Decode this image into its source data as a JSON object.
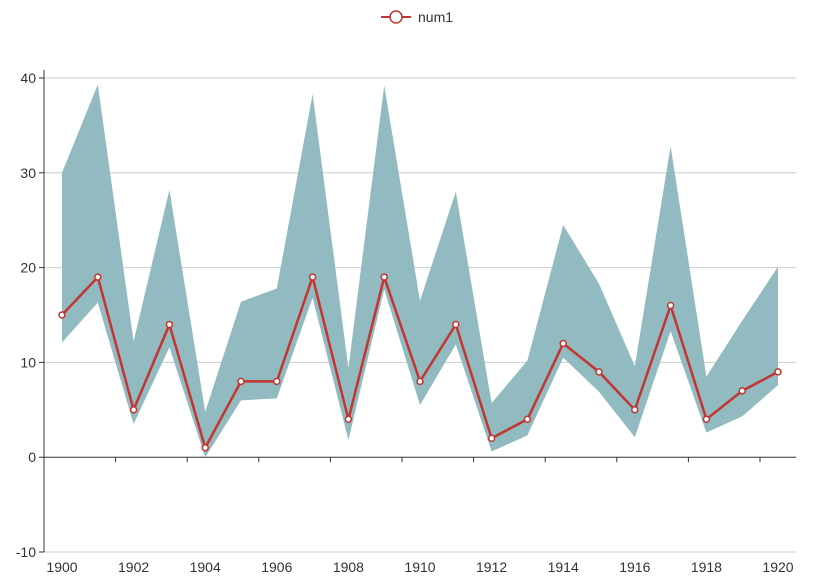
{
  "chart_data": {
    "type": "line",
    "x": [
      1900,
      1901,
      1902,
      1903,
      1904,
      1905,
      1906,
      1907,
      1908,
      1909,
      1910,
      1911,
      1912,
      1913,
      1914,
      1915,
      1916,
      1917,
      1918,
      1919,
      1920
    ],
    "xticks": [
      "1900",
      "1902",
      "1904",
      "1906",
      "1908",
      "1910",
      "1912",
      "1914",
      "1916",
      "1918",
      "1920"
    ],
    "yticks": [
      "40",
      "30",
      "20",
      "10",
      "0",
      "-10"
    ],
    "ylim": [
      -10,
      40
    ],
    "grid": true,
    "legend_position": "top-center",
    "series": [
      {
        "name": "num1",
        "color": "#c23531",
        "values": [
          15,
          19,
          5,
          14,
          1,
          8,
          8,
          19,
          4,
          19,
          8,
          14,
          2,
          4,
          12,
          9,
          5,
          16,
          4,
          7,
          9
        ]
      }
    ],
    "band": {
      "color": "#91bbc0",
      "upper": [
        30,
        39.3,
        12.2,
        28.2,
        4.8,
        16.4,
        17.8,
        38.3,
        9.4,
        39.2,
        16.5,
        28,
        5.7,
        10.2,
        24.5,
        18.3,
        9.6,
        32.8,
        8.5,
        14.4,
        20.1
      ],
      "lower": [
        12.1,
        16.3,
        3.5,
        11.6,
        0,
        6,
        6.2,
        16.8,
        1.8,
        17.7,
        5.5,
        11.9,
        0.6,
        2.3,
        10.5,
        6.9,
        2.1,
        13.3,
        2.6,
        4.3,
        7.6
      ]
    }
  }
}
